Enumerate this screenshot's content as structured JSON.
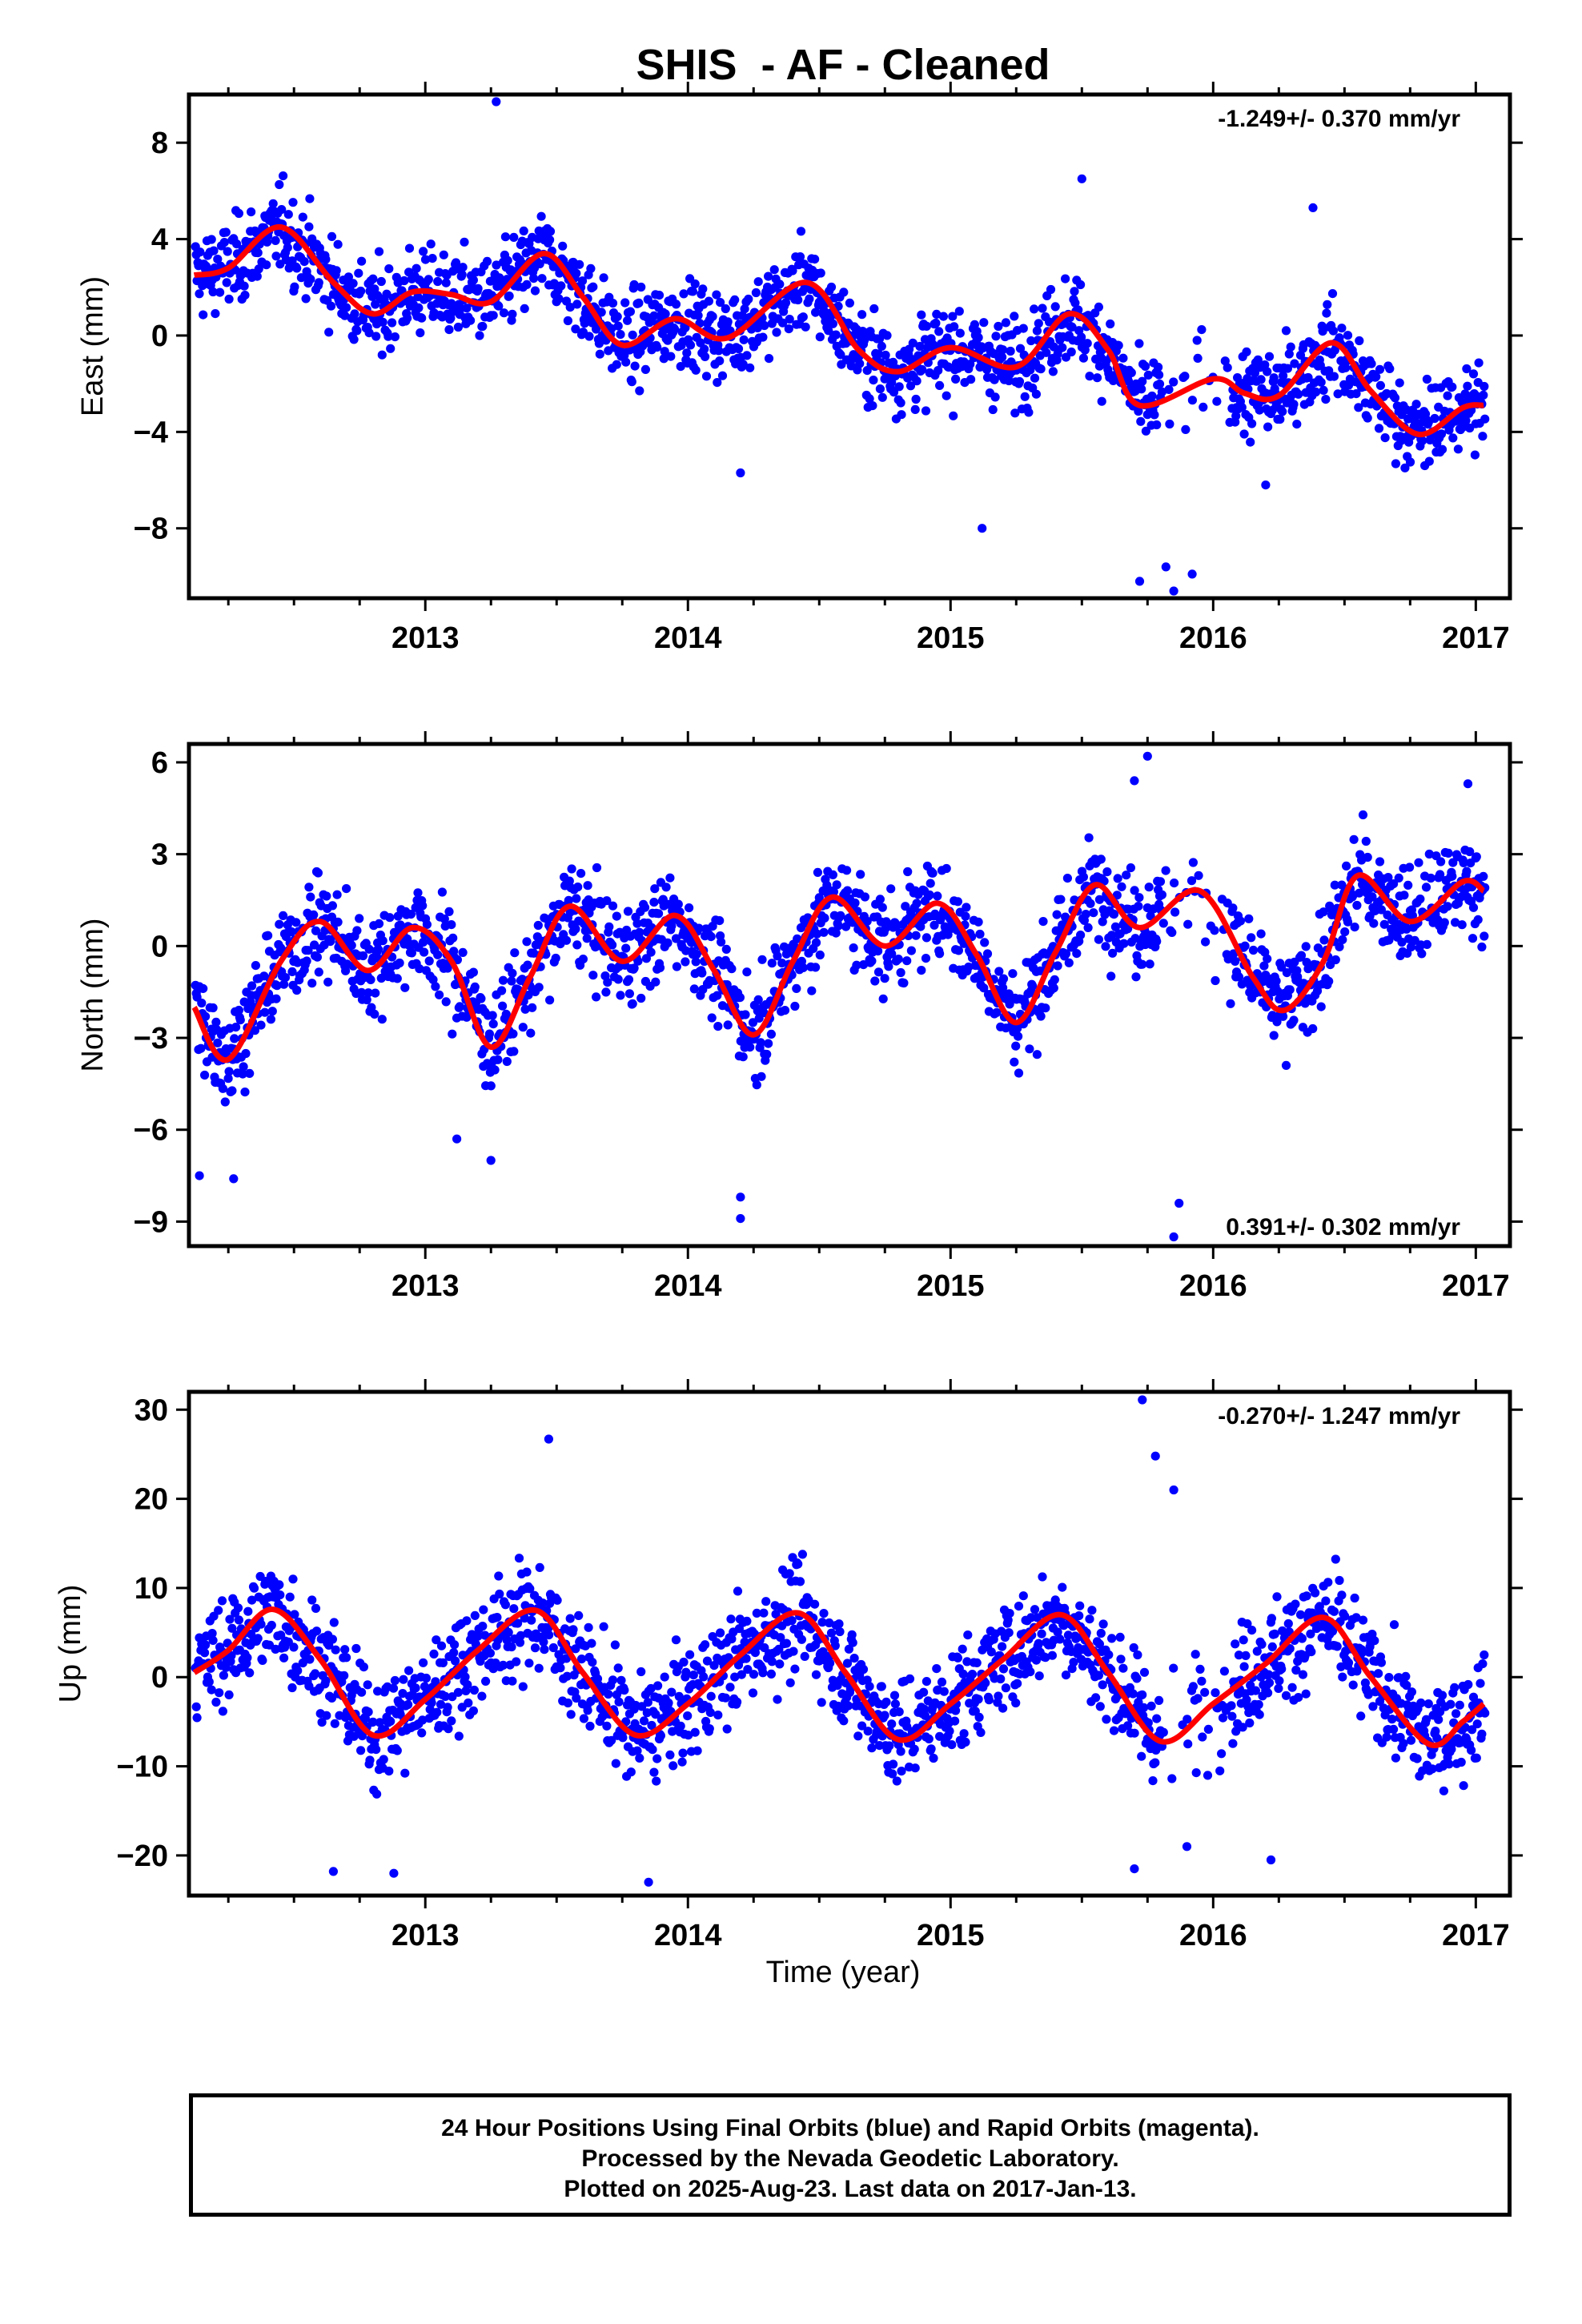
{
  "chart_data": {
    "type": "scatter",
    "title": "SHIS  - AF - Cleaned",
    "xlabel": "Time (year)",
    "xlim": [
      2012.1,
      2017.13
    ],
    "x_ticks": [
      "2013",
      "2014",
      "2015",
      "2016",
      "2017"
    ],
    "x_tick_values": [
      2013,
      2014,
      2015,
      2016,
      2017
    ],
    "series_colors": {
      "final_orbits": "#0000ff",
      "model_fit": "#ff0000"
    },
    "panels": [
      {
        "name": "east",
        "ylabel": "East (mm)",
        "ylim": [
          -10.9,
          10.0
        ],
        "y_ticks": [
          "8",
          "4",
          "0",
          "−4",
          "−8"
        ],
        "y_tick_values": [
          8,
          4,
          0,
          -4,
          -8
        ],
        "rate_label": "-1.249+/- 0.370 mm/yr",
        "rate_position": "top-right",
        "seasonal_model": {
          "trend": -1.249,
          "annual_amp": 1.6,
          "annual_phase_year": 0.45,
          "semiannual_amp": 0.6,
          "offset": 2.5
        },
        "fit": {
          "x": [
            2012.12,
            2012.25,
            2012.45,
            2012.65,
            2012.8,
            2012.95,
            2013.1,
            2013.25,
            2013.45,
            2013.6,
            2013.75,
            2013.95,
            2014.15,
            2014.45,
            2014.65,
            2014.8,
            2015.0,
            2015.25,
            2015.45,
            2015.6,
            2015.72,
            2016.0,
            2016.12,
            2016.25,
            2016.45,
            2016.6,
            2016.78,
            2016.95,
            2017.03
          ],
          "y": [
            2.5,
            2.8,
            4.5,
            2.2,
            0.9,
            1.8,
            1.7,
            1.4,
            3.4,
            1.6,
            -0.4,
            0.7,
            -0.1,
            2.2,
            -0.6,
            -1.5,
            -0.5,
            -1.3,
            0.9,
            -0.6,
            -2.9,
            -1.8,
            -2.4,
            -2.5,
            -0.3,
            -2.3,
            -4.1,
            -3.0,
            -2.9
          ]
        },
        "outliers": [
          [
            2013.27,
            9.7
          ],
          [
            2014.2,
            -5.7
          ],
          [
            2015.12,
            -8.0
          ],
          [
            2015.72,
            -10.2
          ],
          [
            2015.82,
            -9.6
          ],
          [
            2015.85,
            -10.6
          ],
          [
            2015.92,
            -9.9
          ],
          [
            2015.5,
            6.5
          ],
          [
            2016.38,
            5.3
          ],
          [
            2016.2,
            -6.2
          ]
        ]
      },
      {
        "name": "north",
        "ylabel": "North (mm)",
        "ylim": [
          -9.8,
          6.6
        ],
        "y_ticks": [
          "6",
          "3",
          "0",
          "−3",
          "−6",
          "−9"
        ],
        "y_tick_values": [
          6,
          3,
          0,
          -3,
          -6,
          -9
        ],
        "rate_label": "0.391+/- 0.302 mm/yr",
        "rate_position": "bottom-right",
        "seasonal_model": {
          "trend": 0.391,
          "annual_amp": 1.9,
          "annual_phase_year": 0.55,
          "semiannual_amp": 1.0,
          "offset": -1.2
        },
        "fit": {
          "x": [
            2012.12,
            2012.25,
            2012.45,
            2012.6,
            2012.78,
            2012.95,
            2013.1,
            2013.25,
            2013.4,
            2013.55,
            2013.75,
            2013.95,
            2014.1,
            2014.25,
            2014.4,
            2014.55,
            2014.75,
            2014.95,
            2015.1,
            2015.25,
            2015.4,
            2015.55,
            2015.72,
            2015.95,
            2016.15,
            2016.27,
            2016.42,
            2016.55,
            2016.75,
            2016.95,
            2017.03
          ],
          "y": [
            -2.0,
            -3.7,
            -0.5,
            0.8,
            -0.8,
            0.6,
            -0.5,
            -3.3,
            -1.0,
            1.3,
            -0.5,
            1.0,
            -0.8,
            -2.9,
            -0.5,
            1.6,
            0.0,
            1.4,
            -0.3,
            -2.5,
            -0.2,
            2.0,
            0.6,
            1.8,
            -1.0,
            -2.1,
            -0.5,
            2.3,
            0.8,
            2.1,
            1.8
          ]
        },
        "outliers": [
          [
            2012.14,
            -7.5
          ],
          [
            2012.27,
            -7.6
          ],
          [
            2013.12,
            -6.3
          ],
          [
            2013.25,
            -7.0
          ],
          [
            2014.2,
            -8.2
          ],
          [
            2014.2,
            -8.9
          ],
          [
            2015.85,
            -9.5
          ],
          [
            2015.87,
            -8.4
          ],
          [
            2015.75,
            6.2
          ],
          [
            2015.7,
            5.4
          ],
          [
            2016.97,
            5.3
          ]
        ]
      },
      {
        "name": "up",
        "ylabel": "Up (mm)",
        "ylim": [
          -24.5,
          32.0
        ],
        "y_ticks": [
          "30",
          "20",
          "10",
          "0",
          "−10",
          "−20"
        ],
        "y_tick_values": [
          30,
          20,
          10,
          0,
          -10,
          -20
        ],
        "rate_label": "-0.270+/- 1.247 mm/yr",
        "rate_position": "top-right",
        "seasonal_model": {
          "trend": -0.27,
          "annual_amp": 7.0,
          "annual_phase_year": 0.42,
          "semiannual_amp": 1.0,
          "offset": 0.5
        },
        "fit": {
          "x": [
            2012.12,
            2012.25,
            2012.42,
            2012.6,
            2012.8,
            2013.0,
            2013.2,
            2013.42,
            2013.6,
            2013.8,
            2014.0,
            2014.2,
            2014.42,
            2014.6,
            2014.8,
            2015.0,
            2015.2,
            2015.42,
            2015.6,
            2015.8,
            2016.0,
            2016.2,
            2016.42,
            2016.6,
            2016.82,
            2016.95,
            2017.03
          ],
          "y": [
            0.5,
            3.0,
            7.6,
            2.0,
            -6.5,
            -2.5,
            3.0,
            7.5,
            0.5,
            -6.5,
            -3.0,
            2.5,
            7.2,
            0.5,
            -7.0,
            -3.0,
            2.0,
            7.0,
            0.5,
            -7.2,
            -3.0,
            1.5,
            6.7,
            0.0,
            -7.5,
            -5.0,
            -3.0
          ]
        },
        "outliers": [
          [
            2013.47,
            26.7
          ],
          [
            2015.73,
            31.1
          ],
          [
            2015.78,
            24.8
          ],
          [
            2015.85,
            21.0
          ],
          [
            2016.22,
            -20.5
          ],
          [
            2013.85,
            -23.0
          ],
          [
            2012.65,
            -21.8
          ],
          [
            2012.88,
            -22.0
          ],
          [
            2015.7,
            -21.5
          ],
          [
            2015.9,
            -19.0
          ]
        ]
      }
    ]
  },
  "footer": {
    "line1": "24 Hour Positions Using Final Orbits (blue) and Rapid Orbits (magenta).",
    "line2": "Processed by the Nevada Geodetic Laboratory.",
    "line3": "Plotted on 2025-Aug-23. Last data on 2017-Jan-13."
  }
}
